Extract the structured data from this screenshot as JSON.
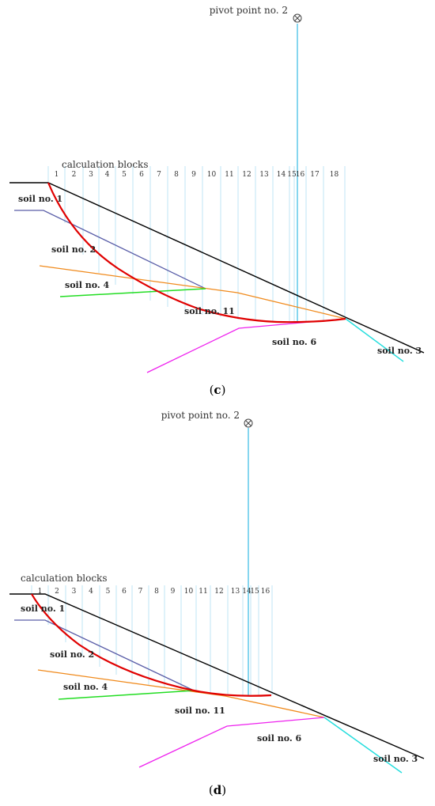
{
  "colors": {
    "slope": "#000000",
    "slip_surface": "#e00000",
    "soil1_boundary": "#5a5ea8",
    "soil4_boundary": "#f08a1c",
    "soil4_lower": "#22dd22",
    "soil6_boundary": "#ee22ee",
    "soil3_boundary": "#22dddd",
    "block_lines": "#bfe6f5",
    "pivot_line": "#52c5e8"
  },
  "panels": [
    {
      "caption": "(c)",
      "caption_letter": "c",
      "pivot_label": "pivot point no. 2",
      "blocks_label": "calculation blocks",
      "block_numbers": [
        "1",
        "2",
        "3",
        "4",
        "5",
        "6",
        "7",
        "8",
        "9",
        "10",
        "11",
        "12",
        "13",
        "14",
        "15",
        "16",
        "17",
        "18"
      ],
      "soil_labels": {
        "soil1": "soil no. 1",
        "soil2": "soil no. 2",
        "soil4": "soil no. 4",
        "soil11": "soil no. 11",
        "soil6": "soil no. 6",
        "soil3": "soil no. 3"
      }
    },
    {
      "caption": "(d)",
      "caption_letter": "d",
      "pivot_label": "pivot point no. 2",
      "blocks_label": "calculation blocks",
      "block_numbers": [
        "1",
        "2",
        "3",
        "4",
        "5",
        "6",
        "7",
        "8",
        "9",
        "10",
        "11",
        "12",
        "13",
        "14",
        "15",
        "16"
      ],
      "soil_labels": {
        "soil1": "soil no. 1",
        "soil2": "soil no. 2",
        "soil4": "soil no. 4",
        "soil11": "soil no. 11",
        "soil6": "soil no. 6",
        "soil3": "soil no. 3"
      }
    }
  ]
}
